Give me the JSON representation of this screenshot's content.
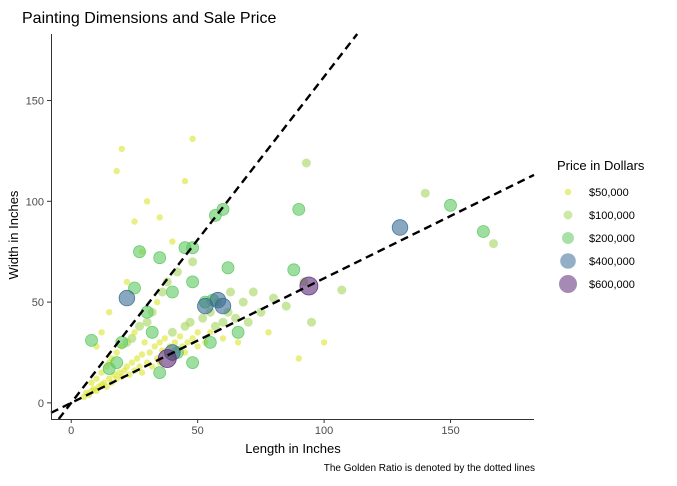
{
  "chart_data": {
    "type": "scatter",
    "title": "Painting Dimensions and Sale Price",
    "xlabel": "Length in Inches",
    "ylabel": "Width in Inches",
    "caption": "The Golden Ratio is denoted by the dotted lines",
    "xlim": [
      -8,
      183
    ],
    "ylim": [
      -8,
      183
    ],
    "xticks": [
      0,
      50,
      100,
      150
    ],
    "yticks": [
      0,
      50,
      100,
      150
    ],
    "tick_labels": {
      "x": [
        "0",
        "50",
        "100",
        "150"
      ],
      "y": [
        "0",
        "50",
        "100",
        "150"
      ]
    },
    "grid": false,
    "legend": {
      "title": "Price in Dollars",
      "position": "right",
      "entries": [
        {
          "label": "$50,000",
          "color": "#d7e219",
          "size": 3.2
        },
        {
          "label": "$100,000",
          "color": "#a5d55d",
          "size": 4.5
        },
        {
          "label": "$200,000",
          "color": "#5ec962",
          "size": 6
        },
        {
          "label": "$400,000",
          "color": "#3b6d95",
          "size": 7.8
        },
        {
          "label": "$600,000",
          "color": "#5b2a78",
          "size": 9
        }
      ]
    },
    "golden_ratio_lines": [
      {
        "slope": 1.618,
        "style": "dashed",
        "color": "#000000"
      },
      {
        "slope": 0.618,
        "style": "dashed",
        "color": "#000000"
      }
    ],
    "series": [
      {
        "note_price_bins": "each point: [length, width, price]",
        "points": [
          [
            5,
            3,
            20000
          ],
          [
            6,
            5,
            15000
          ],
          [
            7,
            4,
            25000
          ],
          [
            8,
            6,
            18000
          ],
          [
            8,
            10,
            22000
          ],
          [
            9,
            7,
            30000
          ],
          [
            10,
            6,
            12000
          ],
          [
            10,
            12,
            28000
          ],
          [
            11,
            8,
            35000
          ],
          [
            12,
            9,
            20000
          ],
          [
            12,
            15,
            40000
          ],
          [
            13,
            10,
            26000
          ],
          [
            14,
            8,
            31000
          ],
          [
            14,
            18,
            45000
          ],
          [
            15,
            12,
            38000
          ],
          [
            15,
            20,
            52000
          ],
          [
            16,
            10,
            24000
          ],
          [
            16,
            22,
            41000
          ],
          [
            17,
            14,
            60000
          ],
          [
            18,
            12,
            33000
          ],
          [
            18,
            25,
            70000
          ],
          [
            19,
            15,
            29000
          ],
          [
            20,
            13,
            48000
          ],
          [
            20,
            28,
            55000
          ],
          [
            21,
            16,
            36000
          ],
          [
            22,
            18,
            62000
          ],
          [
            22,
            30,
            80000
          ],
          [
            23,
            14,
            27000
          ],
          [
            24,
            20,
            44000
          ],
          [
            24,
            32,
            90000
          ],
          [
            25,
            16,
            39000
          ],
          [
            25,
            35,
            68000
          ],
          [
            26,
            22,
            57000
          ],
          [
            27,
            18,
            33000
          ],
          [
            27,
            38,
            75000
          ],
          [
            28,
            24,
            49000
          ],
          [
            28,
            15,
            21000
          ],
          [
            29,
            30,
            66000
          ],
          [
            30,
            20,
            42000
          ],
          [
            30,
            40,
            85000
          ],
          [
            31,
            25,
            53000
          ],
          [
            32,
            18,
            30000
          ],
          [
            32,
            45,
            95000
          ],
          [
            33,
            28,
            58000
          ],
          [
            34,
            22,
            47000
          ],
          [
            34,
            50,
            72000
          ],
          [
            35,
            30,
            64000
          ],
          [
            35,
            20,
            38000
          ],
          [
            36,
            26,
            51000
          ],
          [
            36,
            55,
            88000
          ],
          [
            37,
            32,
            69000
          ],
          [
            38,
            24,
            45000
          ],
          [
            38,
            60,
            110000
          ],
          [
            39,
            28,
            56000
          ],
          [
            40,
            35,
            77000
          ],
          [
            40,
            22,
            40000
          ],
          [
            41,
            30,
            61000
          ],
          [
            42,
            26,
            49000
          ],
          [
            42,
            65,
            98000
          ],
          [
            43,
            33,
            70000
          ],
          [
            44,
            28,
            54000
          ],
          [
            45,
            38,
            82000
          ],
          [
            45,
            25,
            43000
          ],
          [
            46,
            30,
            63000
          ],
          [
            47,
            40,
            90000
          ],
          [
            48,
            32,
            67000
          ],
          [
            48,
            70,
            105000
          ],
          [
            50,
            35,
            74000
          ],
          [
            50,
            28,
            52000
          ],
          [
            52,
            42,
            86000
          ],
          [
            53,
            30,
            60000
          ],
          [
            55,
            45,
            93000
          ],
          [
            55,
            35,
            71000
          ],
          [
            57,
            38,
            79000
          ],
          [
            58,
            50,
            99000
          ],
          [
            60,
            40,
            84000
          ],
          [
            60,
            32,
            65000
          ],
          [
            62,
            45,
            92000
          ],
          [
            63,
            55,
            108000
          ],
          [
            65,
            42,
            88000
          ],
          [
            66,
            30,
            58000
          ],
          [
            68,
            50,
            96000
          ],
          [
            70,
            40,
            81000
          ],
          [
            72,
            55,
            102000
          ],
          [
            75,
            45,
            91000
          ],
          [
            78,
            35,
            73000
          ],
          [
            80,
            52,
            100000
          ],
          [
            85,
            48,
            95000
          ],
          [
            90,
            22,
            40000
          ],
          [
            92,
            60,
            115000
          ],
          [
            95,
            40,
            82000
          ],
          [
            100,
            30,
            61000
          ],
          [
            107,
            56,
            140000
          ],
          [
            140,
            104,
            90000
          ],
          [
            167,
            79,
            130000
          ],
          [
            18,
            115,
            55000
          ],
          [
            20,
            126,
            60000
          ],
          [
            48,
            131,
            70000
          ],
          [
            93,
            119,
            80000
          ],
          [
            25,
            90,
            50000
          ],
          [
            30,
            100,
            65000
          ],
          [
            35,
            92,
            58000
          ],
          [
            40,
            80,
            72000
          ],
          [
            28,
            75,
            48000
          ],
          [
            22,
            60,
            52000
          ],
          [
            15,
            45,
            36000
          ],
          [
            12,
            35,
            30000
          ],
          [
            10,
            28,
            25000
          ],
          [
            45,
            110,
            62000
          ],
          [
            60,
            96,
            240000
          ],
          [
            57,
            93,
            230000
          ],
          [
            90,
            96,
            210000
          ],
          [
            150,
            98,
            200000
          ],
          [
            163,
            85,
            210000
          ],
          [
            88,
            66,
            220000
          ],
          [
            62,
            67,
            200000
          ],
          [
            48,
            77,
            230000
          ],
          [
            45,
            77,
            200000
          ],
          [
            27,
            75,
            210000
          ],
          [
            35,
            72,
            190000
          ],
          [
            25,
            57,
            200000
          ],
          [
            20,
            30,
            210000
          ],
          [
            8,
            31,
            200000
          ],
          [
            30,
            45,
            220000
          ],
          [
            40,
            55,
            200000
          ],
          [
            48,
            60,
            210000
          ],
          [
            53,
            50,
            200000
          ],
          [
            56,
            51,
            230000
          ],
          [
            35,
            15,
            190000
          ],
          [
            48,
            20,
            200000
          ],
          [
            66,
            35,
            210000
          ],
          [
            55,
            30,
            200000
          ],
          [
            42,
            25,
            215000
          ],
          [
            32,
            35,
            205000
          ],
          [
            18,
            20,
            200000
          ],
          [
            15,
            17,
            220000
          ],
          [
            22,
            52,
            400000
          ],
          [
            130,
            87,
            400000
          ],
          [
            94,
            58,
            600000
          ],
          [
            38,
            22,
            550000
          ],
          [
            40,
            25,
            380000
          ],
          [
            60,
            48,
            420000
          ],
          [
            58,
            51,
            390000
          ],
          [
            53,
            48,
            380000
          ]
        ]
      }
    ]
  }
}
